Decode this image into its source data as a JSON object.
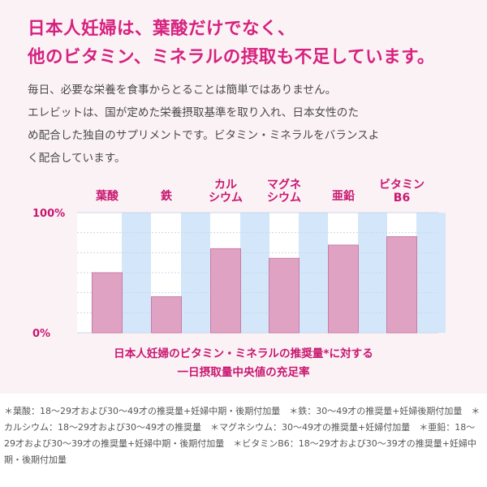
{
  "headline": {
    "line1": "日本人妊婦は、葉酸だけでなく、",
    "line2": "他のビタミン、ミネラルの摂取も不足しています。"
  },
  "description": {
    "line1": "毎日、必要な栄養を食事からとることは簡単ではありません。",
    "line2": "エレビットは、国が定めた栄養摂取基準を取り入れ、日本女性のた",
    "line3": "め配合した独自のサプリメントです。ビタミン・ミネラルをバランスよ",
    "line4": "く配合しています。"
  },
  "chart_data": {
    "type": "bar",
    "categories": [
      "葉酸",
      "鉄",
      "カル\nシウム",
      "マグネ\nシウム",
      "亜鉛",
      "ビタミン\nB6"
    ],
    "values": [
      50,
      30,
      70,
      62,
      73,
      80
    ],
    "ylim": [
      0,
      100
    ],
    "yticks": [
      "0%",
      "100%"
    ],
    "title": "日本人妊婦のビタミン・ミネラルの推奨量*に対する\n一日摂取量中央値の充足率",
    "colors": {
      "bar": "#e0a2c2",
      "bar_edge": "#c77da6",
      "bar_background": "#d4e6f9",
      "label": "#c8176f",
      "grid": "#cbd7e8",
      "axis_text": "#c8176f"
    }
  },
  "caption": {
    "line1": "日本人妊婦のビタミン・ミネラルの推奨量*に対する",
    "line2": "一日摂取量中央値の充足率"
  },
  "footnote": "＊葉酸：18〜29才および30〜49才の推奨量+妊婦中期・後期付加量　＊鉄：30〜49才の推奨量+妊婦後期付加量　＊カルシウム：18〜29才および30〜49才の推奨量　＊マグネシウム：30〜49才の推奨量+妊婦付加量　＊亜鉛：18〜29才および30〜39才の推奨量+妊婦中期・後期付加量　＊ビタミンB6：18〜29才および30〜39才の推奨量+妊婦中期・後期付加量"
}
